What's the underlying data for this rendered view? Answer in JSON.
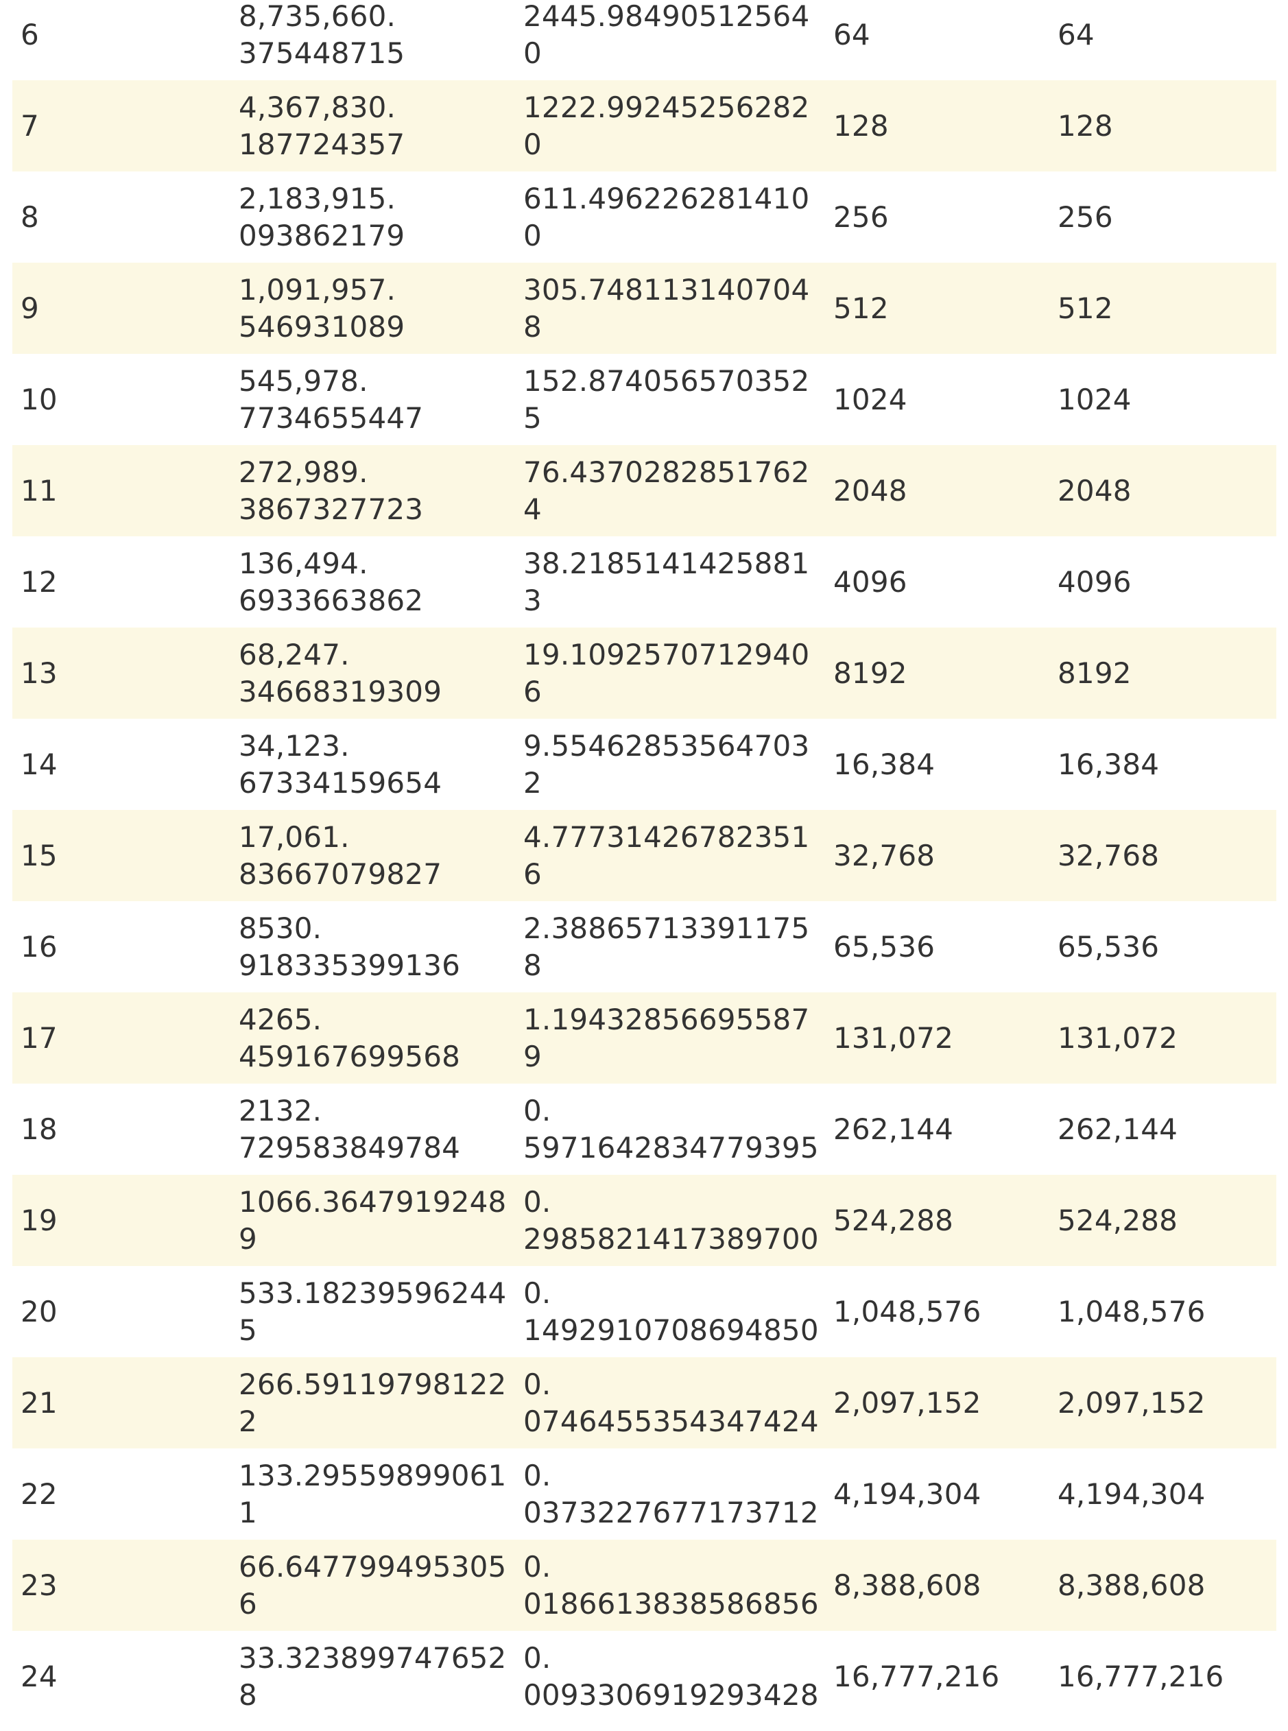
{
  "table": {
    "rows": [
      {
        "level": "6",
        "scale": "8,735,660.\n375448715",
        "resolution": "2445.984905125640",
        "tiles_x": "64",
        "tiles_y": "64"
      },
      {
        "level": "7",
        "scale": "4,367,830.\n187724357",
        "resolution": "1222.992452562820",
        "tiles_x": "128",
        "tiles_y": "128"
      },
      {
        "level": "8",
        "scale": "2,183,915.\n093862179",
        "resolution": "611.4962262814100",
        "tiles_x": "256",
        "tiles_y": "256"
      },
      {
        "level": "9",
        "scale": "1,091,957.\n546931089",
        "resolution": "305.7481131407048",
        "tiles_x": "512",
        "tiles_y": "512"
      },
      {
        "level": "10",
        "scale": "545,978.\n7734655447",
        "resolution": "152.8740565703525",
        "tiles_x": "1024",
        "tiles_y": "1024"
      },
      {
        "level": "11",
        "scale": "272,989.\n3867327723",
        "resolution": "76.43702828517624",
        "tiles_x": "2048",
        "tiles_y": "2048"
      },
      {
        "level": "12",
        "scale": "136,494.\n6933663862",
        "resolution": "38.21851414258813",
        "tiles_x": "4096",
        "tiles_y": "4096"
      },
      {
        "level": "13",
        "scale": "68,247.\n34668319309",
        "resolution": "19.10925707129406",
        "tiles_x": "8192",
        "tiles_y": "8192"
      },
      {
        "level": "14",
        "scale": "34,123.\n67334159654",
        "resolution": "9.554628535647032",
        "tiles_x": "16,384",
        "tiles_y": "16,384"
      },
      {
        "level": "15",
        "scale": "17,061.\n83667079827",
        "resolution": "4.777314267823516",
        "tiles_x": "32,768",
        "tiles_y": "32,768"
      },
      {
        "level": "16",
        "scale": "8530.\n918335399136",
        "resolution": "2.388657133911758",
        "tiles_x": "65,536",
        "tiles_y": "65,536"
      },
      {
        "level": "17",
        "scale": "4265.\n459167699568",
        "resolution": "1.194328566955879",
        "tiles_x": "131,072",
        "tiles_y": "131,072"
      },
      {
        "level": "18",
        "scale": "2132.\n729583849784",
        "resolution": "0.\n5971642834779395",
        "tiles_x": "262,144",
        "tiles_y": "262,144"
      },
      {
        "level": "19",
        "scale": "1066.36479192489",
        "resolution": "0.\n2985821417389700",
        "tiles_x": "524,288",
        "tiles_y": "524,288"
      },
      {
        "level": "20",
        "scale": "533.182395962445",
        "resolution": "0.\n1492910708694850",
        "tiles_x": "1,048,576",
        "tiles_y": "1,048,576"
      },
      {
        "level": "21",
        "scale": "266.591197981222",
        "resolution": "0.\n0746455354347424",
        "tiles_x": "2,097,152",
        "tiles_y": "2,097,152"
      },
      {
        "level": "22",
        "scale": "133.295598990611",
        "resolution": "0.\n0373227677173712",
        "tiles_x": "4,194,304",
        "tiles_y": "4,194,304"
      },
      {
        "level": "23",
        "scale": "66.6477994953056",
        "resolution": "0.\n0186613838586856",
        "tiles_x": "8,388,608",
        "tiles_y": "8,388,608"
      },
      {
        "level": "24",
        "scale": "33.3238997476528",
        "resolution": "0.\n0093306919293428",
        "tiles_x": "16,777,216",
        "tiles_y": "16,777,216"
      }
    ]
  },
  "colors": {
    "stripe": "#fcf8e3",
    "text": "#333333",
    "background": "#ffffff"
  }
}
